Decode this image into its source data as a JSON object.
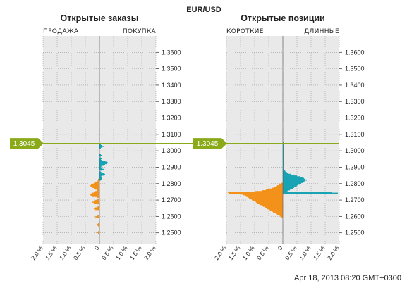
{
  "header": {
    "symbol": "EUR/USD"
  },
  "footer": {
    "timestamp": "Apr 18, 2013 08:20 GMT+0300"
  },
  "current_price": {
    "label": "1.3045",
    "value": 1.3045
  },
  "colors": {
    "short": "#f39118",
    "long": "#17a3b3",
    "price_line": "#8aaa1a",
    "panel_bg": "#e9e9e9",
    "grid": "#9a9a9a"
  },
  "chart_data": [
    {
      "type": "bar",
      "orientation": "horizontal",
      "title": "Открытые заказы",
      "left_label": "ПРОДАЖА",
      "right_label": "ПОКУПКА",
      "ylim": [
        1.243,
        1.37
      ],
      "yticks": [
        1.25,
        1.26,
        1.27,
        1.28,
        1.29,
        1.3,
        1.31,
        1.32,
        1.33,
        1.34,
        1.35,
        1.36
      ],
      "ytick_labels": [
        "1.2500",
        "1.2600",
        "1.2700",
        "1.2800",
        "1.2900",
        "1.3000",
        "1.3100",
        "1.3200",
        "1.3300",
        "1.3400",
        "1.3500",
        "1.3600"
      ],
      "xlim": [
        -2.0,
        2.0
      ],
      "xticks": [
        -2.0,
        -1.5,
        -1.0,
        -0.5,
        0,
        0.5,
        1.0,
        1.5,
        2.0
      ],
      "xtick_labels": [
        "2.0 %",
        "1.5 %",
        "1.0 %",
        "0.5 %",
        "0",
        "0.5 %",
        "1.0 %",
        "1.5 %",
        "2.0 %"
      ],
      "bin": 0.0005,
      "bins_start": 1.244,
      "series": [
        {
          "name": "ПРОДАЖА",
          "side": "left",
          "values": [
            0,
            0,
            0,
            0,
            0,
            0,
            0,
            0,
            0,
            0,
            0,
            0.05,
            0.08,
            0.05,
            0,
            0,
            0,
            0,
            0,
            0,
            0.05,
            0.08,
            0.1,
            0.05,
            0,
            0,
            0,
            0,
            0,
            0,
            0.1,
            0.15,
            0.1,
            0.05,
            0,
            0,
            0,
            0,
            0,
            0,
            0.15,
            0.2,
            0.15,
            0.1,
            0.05,
            0,
            0,
            0.1,
            0.2,
            0.25,
            0.2,
            0.15,
            0.1,
            0.05,
            0,
            0.1,
            0.25,
            0.3,
            0.35,
            0.3,
            0.25,
            0.2,
            0.15,
            0.1,
            0.1,
            0.15,
            0.2,
            0.25,
            0.3,
            0.35,
            0.3,
            0.25,
            0.2,
            0.15,
            0.1,
            0.05,
            0.1,
            0.05,
            0,
            0,
            0,
            0,
            0,
            0,
            0,
            0,
            0,
            0,
            0,
            0,
            0,
            0,
            0,
            0,
            0,
            0,
            0,
            0,
            0,
            0,
            0,
            0,
            0,
            0,
            0,
            0,
            0,
            0,
            0,
            0,
            0,
            0,
            0,
            0,
            0,
            0,
            0,
            0,
            0,
            0,
            0,
            0,
            0,
            0,
            0,
            0,
            0,
            0
          ]
        },
        {
          "name": "ПОКУПКА",
          "side": "right",
          "values": [
            0,
            0,
            0,
            0,
            0,
            0,
            0,
            0,
            0,
            0,
            0,
            0,
            0,
            0,
            0,
            0,
            0,
            0,
            0,
            0,
            0,
            0,
            0,
            0,
            0,
            0,
            0,
            0,
            0,
            0,
            0,
            0,
            0,
            0,
            0,
            0,
            0,
            0,
            0,
            0,
            0,
            0,
            0,
            0,
            0,
            0,
            0,
            0,
            0,
            0,
            0,
            0,
            0,
            0,
            0,
            0,
            0,
            0,
            0,
            0,
            0,
            0,
            0,
            0,
            0,
            0,
            0,
            0,
            0,
            0,
            0,
            0,
            0,
            0,
            0,
            0,
            0.05,
            0.08,
            0.1,
            0.08,
            0.05,
            0.1,
            0.15,
            0.2,
            0.15,
            0.1,
            0.05,
            0,
            0.1,
            0.15,
            0.1,
            0.08,
            0.05,
            0.1,
            0.15,
            0.2,
            0.25,
            0.3,
            0.25,
            0.2,
            0.1,
            0.05,
            0.1,
            0.05,
            0,
            0.05,
            0.08,
            0.05,
            0,
            0,
            0,
            0,
            0,
            0,
            0,
            0.05,
            0.1,
            0.15,
            0.1,
            0.05,
            0,
            0,
            0
          ]
        }
      ]
    },
    {
      "type": "bar",
      "orientation": "horizontal",
      "title": "Открытые позиции",
      "left_label": "КОРОТКИЕ",
      "right_label": "ДЛИННЫЕ",
      "ylim": [
        1.243,
        1.37
      ],
      "yticks": [
        1.25,
        1.26,
        1.27,
        1.28,
        1.29,
        1.3,
        1.31,
        1.32,
        1.33,
        1.34,
        1.35,
        1.36
      ],
      "ytick_labels": [
        "1.2500",
        "1.2600",
        "1.2700",
        "1.2800",
        "1.2900",
        "1.3000",
        "1.3100",
        "1.3200",
        "1.3300",
        "1.3400",
        "1.3500",
        "1.3600"
      ],
      "xlim": [
        -2.0,
        2.0
      ],
      "xticks": [
        -2.0,
        -1.5,
        -1.0,
        -0.5,
        0,
        0.5,
        1.0,
        1.5,
        2.0
      ],
      "xtick_labels": [
        "2.0 %",
        "1.5 %",
        "1.0 %",
        "0.5 %",
        "0",
        "0.5 %",
        "1.0 %",
        "1.5 %",
        "2.0 %"
      ],
      "bin": 0.0005,
      "bins_start": 1.244,
      "series": [
        {
          "name": "КОРОТКИЕ",
          "side": "left",
          "values": [
            0,
            0,
            0,
            0,
            0,
            0,
            0,
            0,
            0,
            0,
            0,
            0,
            0,
            0,
            0,
            0,
            0,
            0,
            0,
            0,
            0,
            0,
            0,
            0,
            0,
            0,
            0,
            0,
            0,
            0,
            0,
            0.05,
            0.1,
            0.15,
            0.2,
            0.25,
            0.3,
            0.35,
            0.4,
            0.45,
            0.5,
            0.55,
            0.6,
            0.65,
            0.7,
            0.75,
            0.8,
            0.85,
            0.9,
            0.95,
            1.0,
            1.05,
            1.1,
            1.15,
            1.2,
            1.25,
            1.3,
            1.35,
            1.4,
            1.5,
            1.9,
            1.95,
            1.0,
            0.75,
            0.6,
            0.5,
            0.4,
            0.3,
            0.25,
            0.2,
            0.15,
            0.1,
            0.05,
            0,
            0,
            0,
            0,
            0,
            0,
            0,
            0,
            0,
            0,
            0,
            0,
            0,
            0,
            0,
            0,
            0,
            0,
            0,
            0,
            0,
            0,
            0,
            0,
            0,
            0,
            0,
            0,
            0,
            0,
            0,
            0,
            0,
            0,
            0,
            0,
            0,
            0,
            0,
            0,
            0,
            0,
            0,
            0,
            0,
            0,
            0,
            0,
            0,
            0,
            0,
            0,
            0,
            0
          ]
        },
        {
          "name": "ДЛИННЫЕ",
          "side": "right",
          "values": [
            0,
            0,
            0,
            0,
            0,
            0,
            0,
            0,
            0,
            0,
            0,
            0,
            0,
            0,
            0,
            0,
            0,
            0,
            0,
            0,
            0,
            0,
            0,
            0,
            0,
            0,
            0,
            0,
            0,
            0,
            0,
            0,
            0,
            0,
            0,
            0,
            0,
            0,
            0,
            0,
            0,
            0,
            0,
            0,
            0,
            0,
            0,
            0,
            0,
            0,
            0,
            0,
            0,
            0,
            0,
            0,
            0,
            0,
            0,
            0,
            1.95,
            1.75,
            0.15,
            0.2,
            0.25,
            0.3,
            0.35,
            0.4,
            0.45,
            0.5,
            0.55,
            0.6,
            0.65,
            0.7,
            0.75,
            0.8,
            0.85,
            0.8,
            0.75,
            0.7,
            0.6,
            0.5,
            0.4,
            0.3,
            0.2,
            0.15,
            0.1,
            0.08,
            0.05,
            0.03,
            0.03,
            0.03,
            0.03,
            0.03,
            0.03,
            0.03,
            0.03,
            0.03,
            0.03,
            0.03,
            0.03,
            0.03,
            0.03,
            0.03,
            0.03,
            0.03,
            0.03,
            0.03,
            0.03,
            0.03,
            0.03,
            0.03,
            0.03,
            0.03,
            0.03,
            0.03,
            0.03,
            0.03,
            0.03,
            0.03,
            0.03,
            0.03,
            0.03
          ]
        }
      ]
    }
  ]
}
